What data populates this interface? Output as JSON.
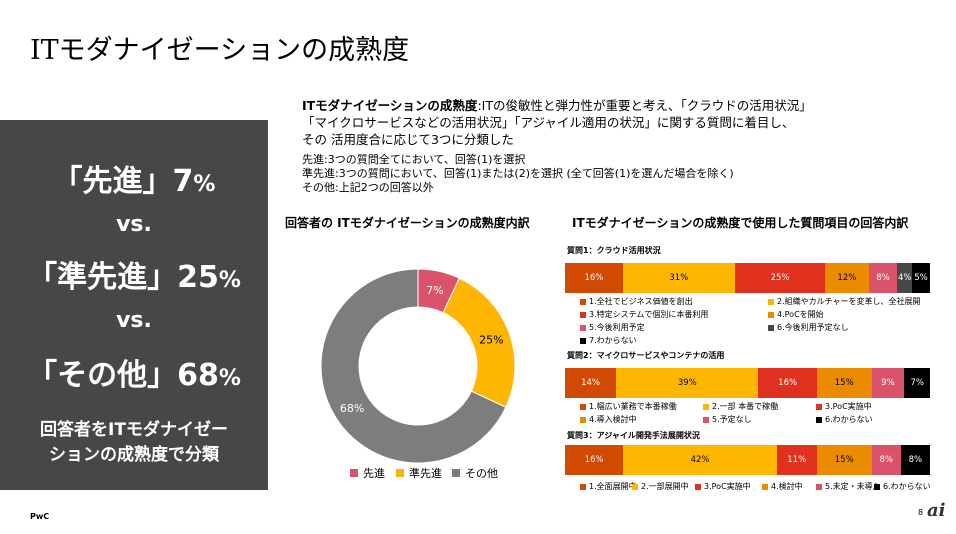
{
  "title": "ITモダナイゼーションの成熟度",
  "panel": {
    "l1": "「先進」7",
    "l1p": "%",
    "vs1": "vs.",
    "l2": "「準先進」25",
    "l2p": "%",
    "vs2": "vs.",
    "l3": "「その他」68",
    "l3p": "%",
    "sum1": "回答者をITモダナイゼー",
    "sum2": "ションの成熟度で分類"
  },
  "desc": {
    "bold": "ITモダナイゼーションの成熟度",
    "line1": ":ITの俊敏性と弾力性が重要と考え、「クラウドの活用状況」",
    "line2": "「マイクロサービスなどの活用状況」「アジャイル適用の状況」に関する質問に着目し、",
    "line3": "その 活用度合に応じて3つに分類した",
    "d1": "先進:3つの質問全てにおいて、回答(1)を選択",
    "d2": "準先進:3つの質問において、回答(1)または(2)を選択 (全て回答(1)を選んだ場合を除く)",
    "d3": "その他:上記2つの回答以外"
  },
  "donut_title": "回答者の ITモダナイゼーションの成熟度内訳",
  "bars_title": "ITモダナイゼーションの成熟度で使用した質問項目の回答内訳",
  "colors": {
    "c1": "#d04a02",
    "c2": "#ffb600",
    "c3": "#e0301e",
    "c4": "#eb8c00",
    "c5": "#db536a",
    "c6": "#474747",
    "c7": "#000000",
    "gray": "#7d7d7d"
  },
  "donut": {
    "slices": [
      {
        "label": "先進",
        "value": 7,
        "text": "7%",
        "color": "#db536a"
      },
      {
        "label": "準先進",
        "value": 25,
        "text": "25%",
        "color": "#ffb600"
      },
      {
        "label": "その他",
        "value": 68,
        "text": "68%",
        "color": "#7d7d7d"
      }
    ]
  },
  "questions": [
    {
      "title": "質問1：クラウド活用状況",
      "values": [
        16,
        31,
        25,
        12,
        8,
        4,
        5
      ],
      "labels": [
        "16%",
        "31%",
        "25%",
        "12%",
        "8%",
        "4%",
        "5%"
      ],
      "colors": [
        "#d04a02",
        "#ffb600",
        "#e0301e",
        "#eb8c00",
        "#db536a",
        "#474747",
        "#000000"
      ],
      "legend": [
        "1.全社でビジネス価値を創出",
        "2.組織やカルチャーを変革し、全社展開",
        "3.特定システムで個別に本番利用",
        "4.PoCを開始",
        "5.今後利用予定",
        "6.今後利用予定なし",
        "7.わからない"
      ]
    },
    {
      "title": "質問2：マイクロサービスやコンテナの活用",
      "values": [
        14,
        39,
        16,
        15,
        9,
        7
      ],
      "labels": [
        "14%",
        "39%",
        "16%",
        "15%",
        "9%",
        "7%"
      ],
      "colors": [
        "#d04a02",
        "#ffb600",
        "#e0301e",
        "#eb8c00",
        "#db536a",
        "#000000"
      ],
      "legend": [
        "1.幅広い業務で本番稼働",
        "2.一部 本番で稼働",
        "3.PoC実施中",
        "4.導入検討中",
        "5.予定なし",
        "6.わからない"
      ]
    },
    {
      "title": "質問3：アジャイル開発手法展開状況",
      "values": [
        16,
        42,
        11,
        15,
        8,
        8
      ],
      "labels": [
        "16%",
        "42%",
        "11%",
        "15%",
        "8%",
        "8%"
      ],
      "colors": [
        "#d04a02",
        "#ffb600",
        "#e0301e",
        "#eb8c00",
        "#db536a",
        "#000000"
      ],
      "legend": [
        "1.全面展開中",
        "2.一部展開中",
        "3.PoC実施中",
        "4.検討中",
        "5.未定・未導入",
        "6.わからない"
      ]
    }
  ],
  "footer": {
    "brand": "PwC",
    "page": "8",
    "logo": "ai"
  }
}
